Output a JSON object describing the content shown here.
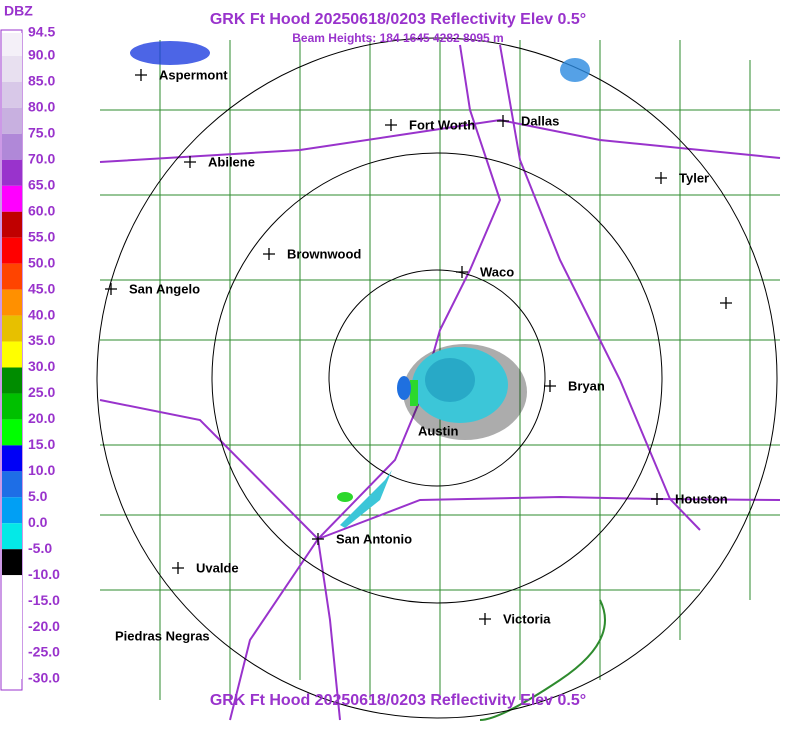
{
  "header": {
    "title": "GRK Ft Hood 20250618/0203 Reflectivity Elev 0.5°",
    "subtitle": "Beam Heights: 184 1645 4282 8095 m"
  },
  "legend": {
    "title": "DBZ",
    "labels": [
      "94.5",
      "90.0",
      "85.0",
      "80.0",
      "75.0",
      "70.0",
      "65.0",
      "60.0",
      "55.0",
      "50.0",
      "45.0",
      "40.0",
      "35.0",
      "30.0",
      "25.0",
      "20.0",
      "15.0",
      "10.0",
      "5.0",
      "0.0",
      "-5.0",
      "-10.0",
      "-15.0",
      "-20.0",
      "-25.0",
      "-30.0"
    ]
  },
  "cities": [
    "Aspermont",
    "Fort Worth",
    "Dallas",
    "Abilene",
    "Tyler",
    "Brownwood",
    "Waco",
    "San Angelo",
    "Bryan",
    "Austin",
    "Houston",
    "San Antonio",
    "Uvalde",
    "Piedras Negras",
    "Victoria"
  ],
  "footer": {
    "title": "GRK Ft Hood 20250618/0203 Reflectivity Elev 0.5°"
  }
}
